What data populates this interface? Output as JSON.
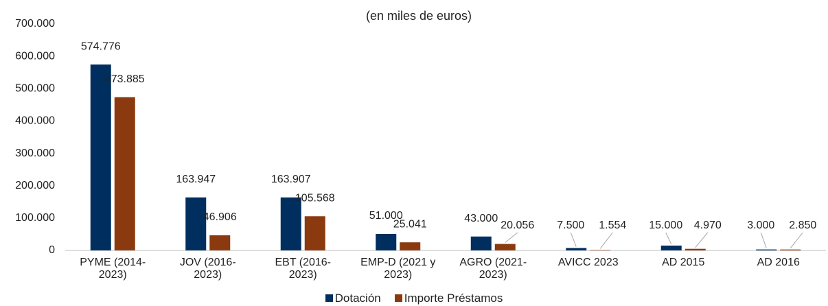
{
  "chart_data": {
    "type": "bar",
    "title": "(en miles de euros)",
    "categories": [
      "PYME (2014-2023)",
      "JOV (2016-2023)",
      "EBT (2016-2023)",
      "EMP-D (2021 y 2023)",
      "AGRO (2021-2023)",
      "AVICC 2023",
      "AD 2015",
      "AD 2016"
    ],
    "series": [
      {
        "name": "Dotación",
        "color": "#002f5f",
        "values": [
          574776,
          163947,
          163907,
          51000,
          43000,
          7500,
          15000,
          3000
        ],
        "value_labels": [
          "574.776",
          "163.947",
          "163.907",
          "51.000",
          "43.000",
          "7.500",
          "15.000",
          "3.000"
        ]
      },
      {
        "name": "Importe Préstamos",
        "color": "#8b3a0f",
        "values": [
          473885,
          46906,
          105568,
          25041,
          20056,
          1554,
          4970,
          2850
        ],
        "value_labels": [
          "473.885",
          "46.906",
          "105.568",
          "25.041",
          "20.056",
          "1.554",
          "4.970",
          "2.850"
        ]
      }
    ],
    "ylim": [
      0,
      700000
    ],
    "yticks": [
      {
        "value": 0,
        "label": "0"
      },
      {
        "value": 100000,
        "label": "100.000"
      },
      {
        "value": 200000,
        "label": "200.000"
      },
      {
        "value": 300000,
        "label": "300.000"
      },
      {
        "value": 400000,
        "label": "400.000"
      },
      {
        "value": 500000,
        "label": "500.000"
      },
      {
        "value": 600000,
        "label": "600.000"
      },
      {
        "value": 700000,
        "label": "700.000"
      }
    ],
    "legend": "bottom"
  }
}
